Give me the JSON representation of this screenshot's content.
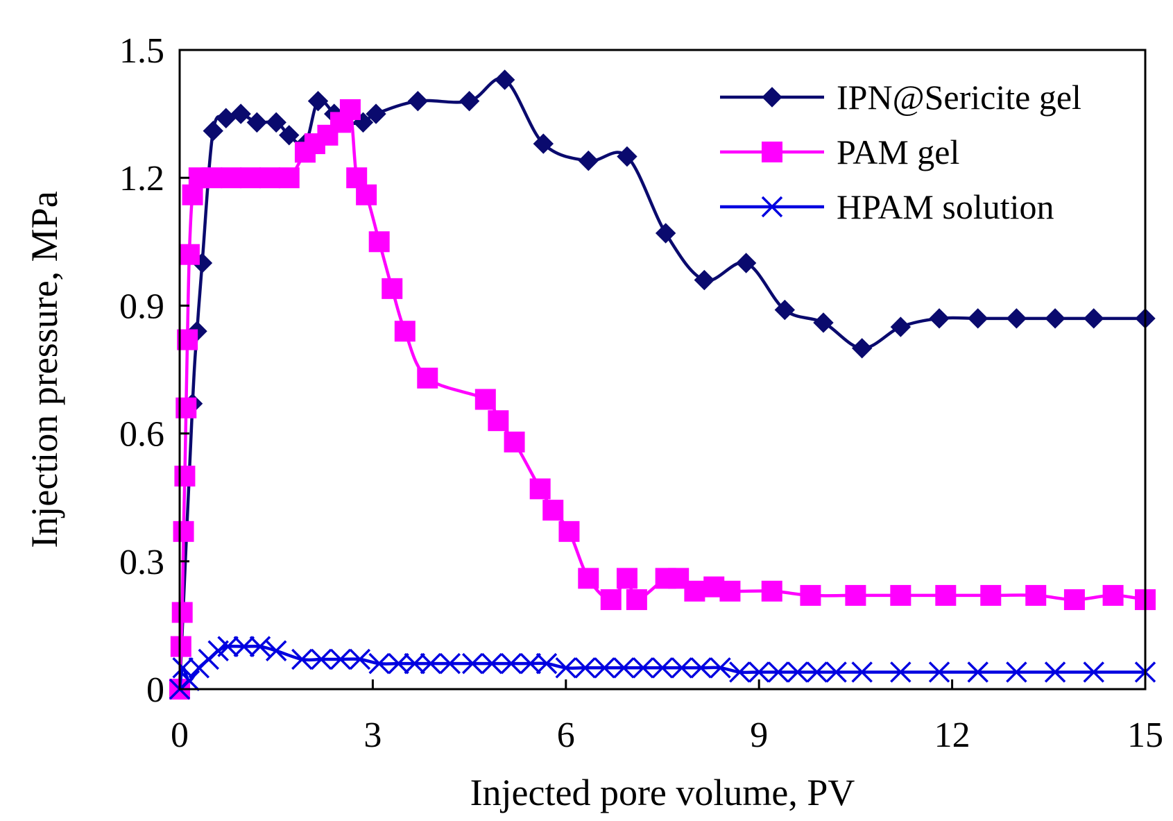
{
  "chart_data": {
    "type": "line",
    "title": "",
    "xlabel": "Injected pore volume,   PV",
    "ylabel": "Injection pressure,   MPa",
    "xlim": [
      0,
      15
    ],
    "ylim": [
      0,
      1.5
    ],
    "xticks": [
      0,
      3,
      6,
      9,
      12,
      15
    ],
    "yticks": [
      0,
      0.3,
      0.6,
      0.9,
      1.2,
      1.5
    ],
    "xtick_labels": [
      "0",
      "3",
      "6",
      "9",
      "12",
      "15"
    ],
    "ytick_labels": [
      "0",
      "0.3",
      "0.6",
      "0.9",
      "1.2",
      "1.5"
    ],
    "grid": false,
    "legend_position": "top-right",
    "series": [
      {
        "name": "IPN@Sericite gel",
        "color": "#0a0a6e",
        "marker": "diamond",
        "x": [
          0.0,
          0.2,
          0.27,
          0.35,
          0.52,
          0.72,
          0.95,
          1.2,
          1.5,
          1.7,
          1.95,
          2.15,
          2.4,
          2.55,
          2.85,
          3.05,
          3.7,
          4.5,
          5.05,
          5.65,
          6.35,
          6.95,
          7.55,
          8.15,
          8.8,
          9.4,
          10.0,
          10.6,
          11.2,
          11.8,
          12.4,
          13.0,
          13.6,
          14.2,
          15.0
        ],
        "y": [
          0.0,
          0.67,
          0.84,
          1.0,
          1.31,
          1.34,
          1.35,
          1.33,
          1.33,
          1.3,
          1.28,
          1.38,
          1.35,
          1.33,
          1.33,
          1.35,
          1.38,
          1.38,
          1.43,
          1.28,
          1.24,
          1.25,
          1.07,
          0.96,
          1.0,
          0.89,
          0.86,
          0.8,
          0.85,
          0.87,
          0.87,
          0.87,
          0.87,
          0.87,
          0.87
        ]
      },
      {
        "name": "PAM gel",
        "color": "#ff00ff",
        "marker": "square",
        "x": [
          0.0,
          0.02,
          0.04,
          0.06,
          0.08,
          0.1,
          0.12,
          0.15,
          0.2,
          0.3,
          0.5,
          0.8,
          1.1,
          1.4,
          1.7,
          1.95,
          2.1,
          2.3,
          2.5,
          2.65,
          2.75,
          2.9,
          3.1,
          3.3,
          3.5,
          3.85,
          4.75,
          4.95,
          5.2,
          5.6,
          5.8,
          6.05,
          6.35,
          6.7,
          6.95,
          7.1,
          7.55,
          7.75,
          8.0,
          8.3,
          8.55,
          9.2,
          9.8,
          10.5,
          11.2,
          11.9,
          12.6,
          13.3,
          13.9,
          14.5,
          15.0
        ],
        "y": [
          0.0,
          0.1,
          0.18,
          0.37,
          0.5,
          0.66,
          0.82,
          1.02,
          1.16,
          1.2,
          1.2,
          1.2,
          1.2,
          1.2,
          1.2,
          1.26,
          1.28,
          1.3,
          1.33,
          1.36,
          1.2,
          1.16,
          1.05,
          0.94,
          0.84,
          0.73,
          0.68,
          0.63,
          0.58,
          0.47,
          0.42,
          0.37,
          0.26,
          0.21,
          0.26,
          0.21,
          0.26,
          0.26,
          0.23,
          0.24,
          0.23,
          0.23,
          0.22,
          0.22,
          0.22,
          0.22,
          0.22,
          0.22,
          0.21,
          0.22,
          0.21
        ]
      },
      {
        "name": "HPAM solution",
        "color": "#0000e0",
        "marker": "x",
        "x": [
          0.0,
          0.05,
          0.15,
          0.3,
          0.45,
          0.6,
          0.75,
          1.0,
          1.25,
          1.5,
          1.9,
          2.2,
          2.5,
          2.8,
          3.1,
          3.4,
          3.65,
          3.9,
          4.2,
          4.55,
          4.85,
          5.15,
          5.45,
          5.7,
          6.0,
          6.3,
          6.6,
          6.9,
          7.2,
          7.5,
          7.8,
          8.1,
          8.4,
          8.7,
          9.0,
          9.3,
          9.6,
          9.9,
          10.2,
          10.6,
          11.2,
          11.8,
          12.4,
          13.0,
          13.6,
          14.2,
          15.0
        ],
        "y": [
          0.0,
          0.05,
          0.02,
          0.05,
          0.07,
          0.09,
          0.1,
          0.1,
          0.1,
          0.09,
          0.07,
          0.07,
          0.07,
          0.07,
          0.06,
          0.06,
          0.06,
          0.06,
          0.06,
          0.06,
          0.06,
          0.06,
          0.06,
          0.06,
          0.05,
          0.05,
          0.05,
          0.05,
          0.05,
          0.05,
          0.05,
          0.05,
          0.05,
          0.04,
          0.04,
          0.04,
          0.04,
          0.04,
          0.04,
          0.04,
          0.04,
          0.04,
          0.04,
          0.04,
          0.04,
          0.04,
          0.04
        ]
      }
    ]
  }
}
